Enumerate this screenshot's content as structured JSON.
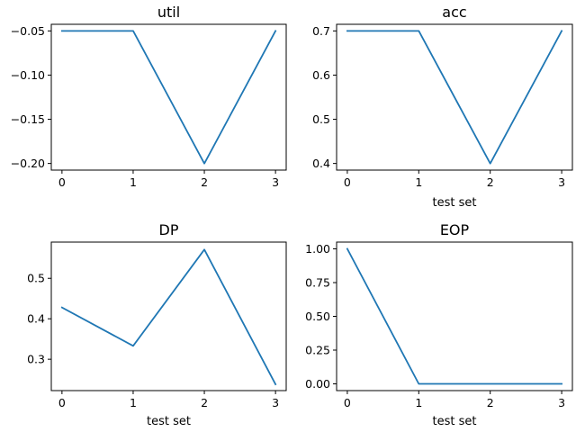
{
  "chart_data": [
    {
      "type": "line",
      "title": "util",
      "xlabel": "",
      "ylabel": "",
      "x": [
        0,
        1,
        2,
        3
      ],
      "x_ticks": [
        0,
        1,
        2,
        3
      ],
      "xlim": [
        -0.15,
        3.15
      ],
      "y_ticks": [
        -0.2,
        -0.15,
        -0.1,
        -0.05
      ],
      "y_tick_labels": [
        "−0.20",
        "−0.15",
        "−0.10",
        "−0.05"
      ],
      "ylim": [
        -0.2075,
        -0.0425
      ],
      "grid": false,
      "series": [
        {
          "values": [
            -0.05,
            -0.05,
            -0.2,
            -0.05
          ],
          "color": "#1f77b4"
        }
      ]
    },
    {
      "type": "line",
      "title": "acc",
      "xlabel": "test set",
      "ylabel": "",
      "x": [
        0,
        1,
        2,
        3
      ],
      "x_ticks": [
        0,
        1,
        2,
        3
      ],
      "xlim": [
        -0.15,
        3.15
      ],
      "y_ticks": [
        0.4,
        0.5,
        0.6,
        0.7
      ],
      "y_tick_labels": [
        "0.4",
        "0.5",
        "0.6",
        "0.7"
      ],
      "ylim": [
        0.385,
        0.715
      ],
      "grid": false,
      "series": [
        {
          "values": [
            0.7,
            0.7,
            0.4,
            0.7
          ],
          "color": "#1f77b4"
        }
      ]
    },
    {
      "type": "line",
      "title": "DP",
      "xlabel": "test set",
      "ylabel": "",
      "x": [
        0,
        1,
        2,
        3
      ],
      "x_ticks": [
        0,
        1,
        2,
        3
      ],
      "xlim": [
        -0.15,
        3.15
      ],
      "y_ticks": [
        0.3,
        0.4,
        0.5
      ],
      "y_tick_labels": [
        "0.3",
        "0.4",
        "0.5"
      ],
      "ylim": [
        0.2225,
        0.5895
      ],
      "grid": false,
      "series": [
        {
          "values": [
            0.428,
            0.333,
            0.571,
            0.238
          ],
          "color": "#1f77b4"
        }
      ]
    },
    {
      "type": "line",
      "title": "EOP",
      "xlabel": "test set",
      "ylabel": "",
      "x": [
        0,
        1,
        2,
        3
      ],
      "x_ticks": [
        0,
        1,
        2,
        3
      ],
      "xlim": [
        -0.15,
        3.15
      ],
      "y_ticks": [
        0.0,
        0.25,
        0.5,
        0.75,
        1.0
      ],
      "y_tick_labels": [
        "0.00",
        "0.25",
        "0.50",
        "0.75",
        "1.00"
      ],
      "ylim": [
        -0.05,
        1.05
      ],
      "grid": false,
      "series": [
        {
          "values": [
            1.0,
            0.0,
            0.0,
            0.0
          ],
          "color": "#1f77b4"
        }
      ]
    }
  ]
}
